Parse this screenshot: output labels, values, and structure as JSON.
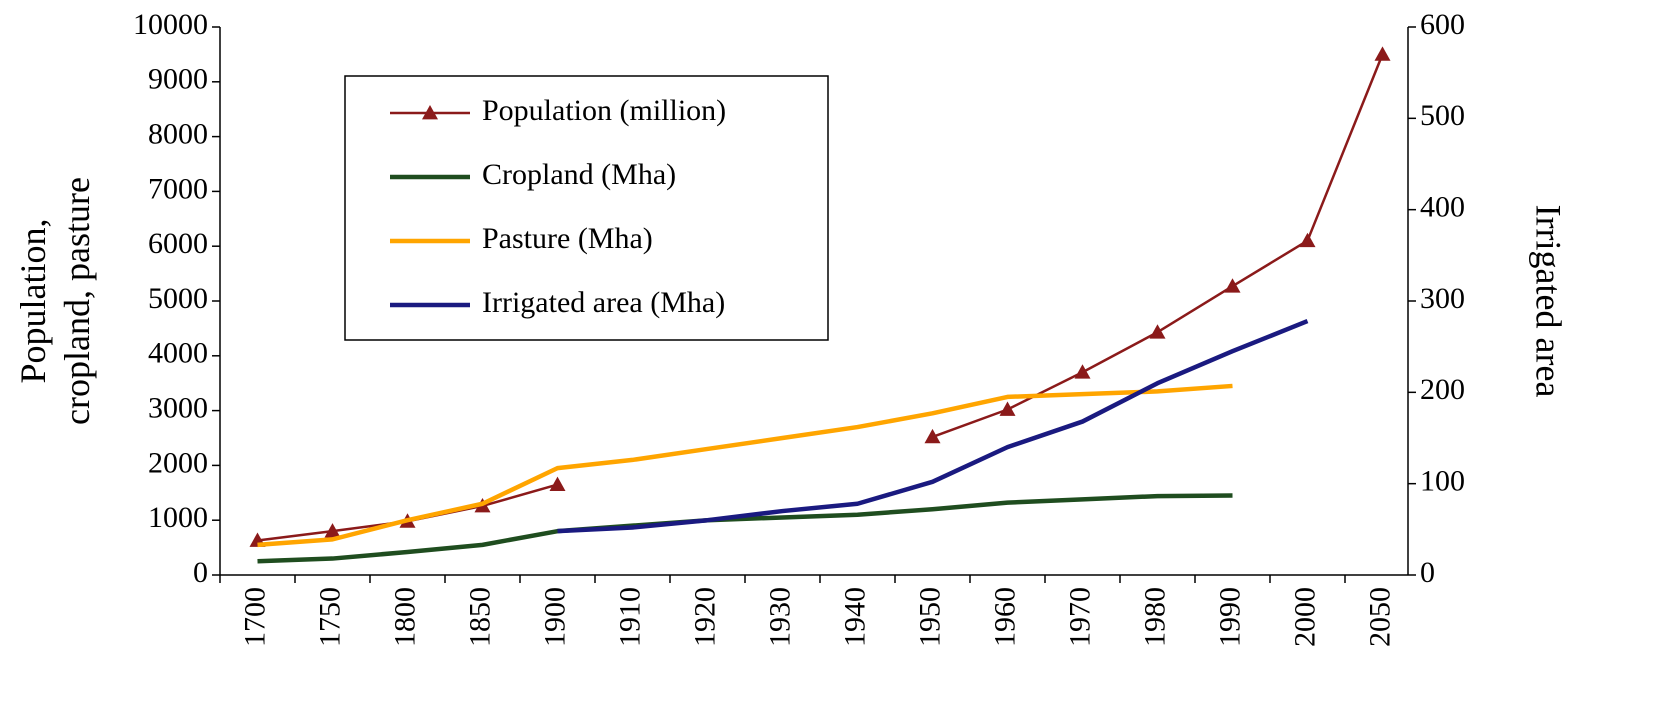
{
  "chart_data": {
    "type": "line",
    "categories": [
      "1700",
      "1750",
      "1800",
      "1850",
      "1900",
      "1910",
      "1920",
      "1930",
      "1940",
      "1950",
      "1960",
      "1970",
      "1980",
      "1990",
      "2000",
      "2050"
    ],
    "series": [
      {
        "name": "Population (million)",
        "color": "#8b1a1a",
        "marker": "triangle",
        "values": [
          630,
          800,
          980,
          1260,
          1650,
          null,
          null,
          null,
          null,
          2520,
          3020,
          3700,
          4430,
          5270,
          6100,
          9500
        ]
      },
      {
        "name": "Cropland (Mha)",
        "color": "#1f4d1f",
        "values": [
          250,
          300,
          420,
          550,
          800,
          900,
          1000,
          1050,
          1100,
          1200,
          1320,
          1380,
          1440,
          1450,
          null,
          null
        ]
      },
      {
        "name": "Pasture (Mha)",
        "color": "#ffa500",
        "values": [
          550,
          650,
          1000,
          1300,
          1950,
          2100,
          2300,
          2500,
          2700,
          2950,
          3250,
          3300,
          3350,
          3450,
          null,
          null
        ]
      },
      {
        "name": "Irrigated area (Mha)",
        "color": "#1a1a80",
        "axis": "y2",
        "values": [
          null,
          null,
          null,
          null,
          48,
          52,
          60,
          70,
          78,
          102,
          140,
          168,
          210,
          245,
          278,
          null
        ]
      }
    ],
    "ylabel": [
      "Population,",
      "cropland, pasture"
    ],
    "y2label": "Irrigated area",
    "ylim": [
      0,
      10000
    ],
    "yticks": [
      0,
      1000,
      2000,
      3000,
      4000,
      5000,
      6000,
      7000,
      8000,
      9000,
      10000
    ],
    "y2lim": [
      0,
      600
    ],
    "y2ticks": [
      0,
      100,
      200,
      300,
      400,
      500,
      600
    ]
  }
}
